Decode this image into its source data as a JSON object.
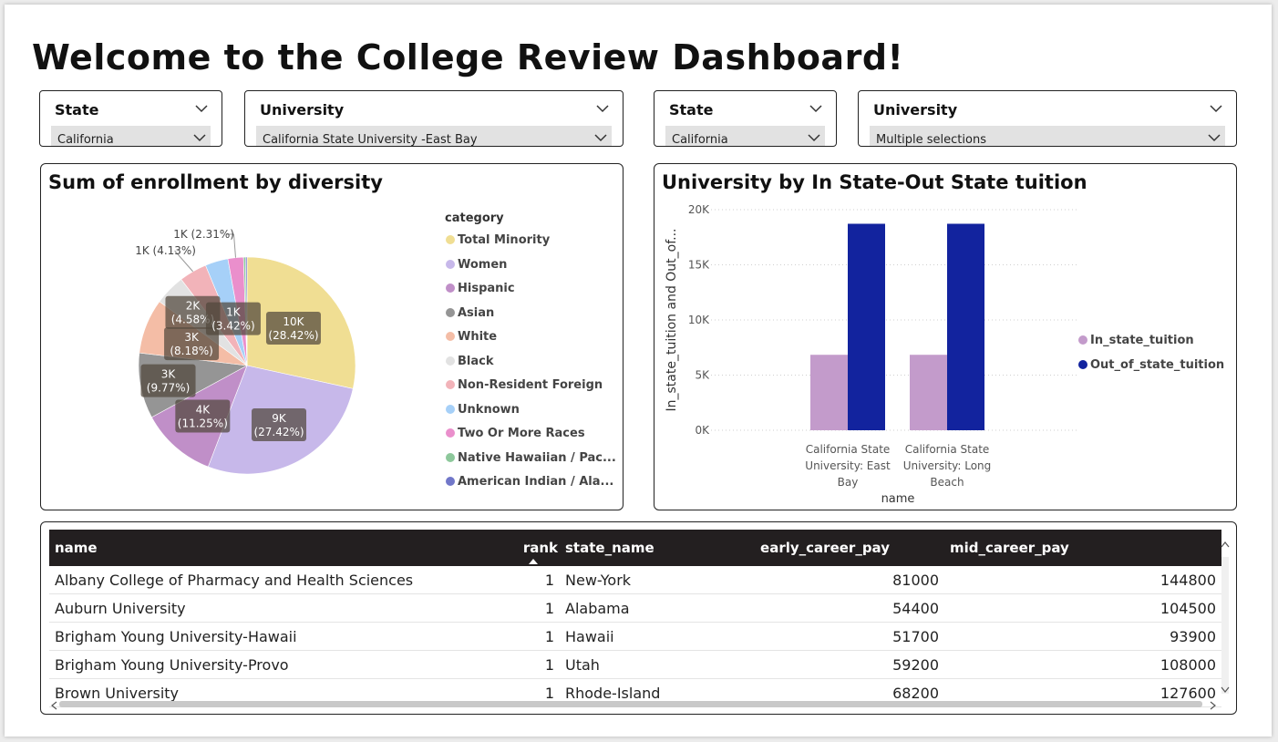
{
  "title": "Welcome to the College Review Dashboard!",
  "slicers": [
    {
      "label": "State",
      "value": "California"
    },
    {
      "label": "University",
      "value": "California State University -East Bay"
    },
    {
      "label": "State",
      "value": "California"
    },
    {
      "label": "University",
      "value": "Multiple selections"
    }
  ],
  "pie": {
    "title": "Sum of enrollment by diversity",
    "legend_title": "category",
    "chart_data": {
      "type": "pie",
      "slices": [
        {
          "category": "Total Minority",
          "percent": 28.42,
          "label": "10K",
          "color": "#F0DE93"
        },
        {
          "category": "Women",
          "percent": 27.42,
          "label": "9K",
          "color": "#C7B8EA"
        },
        {
          "category": "Hispanic",
          "percent": 11.25,
          "label": "4K",
          "color": "#C08FC8"
        },
        {
          "category": "Asian",
          "percent": 9.77,
          "label": "3K",
          "color": "#959595"
        },
        {
          "category": "White",
          "percent": 8.18,
          "label": "3K",
          "color": "#F4BDA6"
        },
        {
          "category": "Black",
          "percent": 4.58,
          "label": "2K",
          "color": "#E2E2E2"
        },
        {
          "category": "Non-Resident Foreign",
          "percent": 4.13,
          "label": "1K",
          "color": "#F2B3B9"
        },
        {
          "category": "Unknown",
          "percent": 3.42,
          "label": "1K",
          "color": "#A6D0F8"
        },
        {
          "category": "Two Or More Races",
          "percent": 2.31,
          "label": "1K",
          "color": "#EA8FCC"
        },
        {
          "category": "Native Hawaiian / Pac...",
          "percent": 0.3,
          "label": "",
          "color": "#8DC89B"
        },
        {
          "category": "American Indian / Ala...",
          "percent": 0.22,
          "label": "",
          "color": "#7177C9"
        }
      ]
    }
  },
  "bar": {
    "title": "University by In State-Out State tuition",
    "chart_data": {
      "type": "bar",
      "xlabel": "name",
      "ylabel": "In_state_tuition and Out_of...",
      "ylim": [
        0,
        20000
      ],
      "yticks": [
        "0K",
        "5K",
        "10K",
        "15K",
        "20K"
      ],
      "categories": [
        [
          "California State",
          "University: East",
          "Bay"
        ],
        [
          "California State",
          "University: Long",
          "Beach"
        ]
      ],
      "series": [
        {
          "name": "In_state_tuition",
          "values": [
            6840,
            6840
          ],
          "color": "#C39BCB"
        },
        {
          "name": "Out_of_state_tuition",
          "values": [
            18720,
            18720
          ],
          "color": "#12239E"
        }
      ]
    }
  },
  "table": {
    "columns": [
      "name",
      "rank",
      "state_name",
      "early_career_pay",
      "mid_career_pay"
    ],
    "rows": [
      [
        "Albany College of Pharmacy and Health Sciences",
        "1",
        "New-York",
        "81000",
        "144800"
      ],
      [
        "Auburn University",
        "1",
        "Alabama",
        "54400",
        "104500"
      ],
      [
        "Brigham Young University-Hawaii",
        "1",
        "Hawaii",
        "51700",
        "93900"
      ],
      [
        "Brigham Young University-Provo",
        "1",
        "Utah",
        "59200",
        "108000"
      ],
      [
        "Brown University",
        "1",
        "Rhode-Island",
        "68200",
        "127600"
      ]
    ]
  }
}
